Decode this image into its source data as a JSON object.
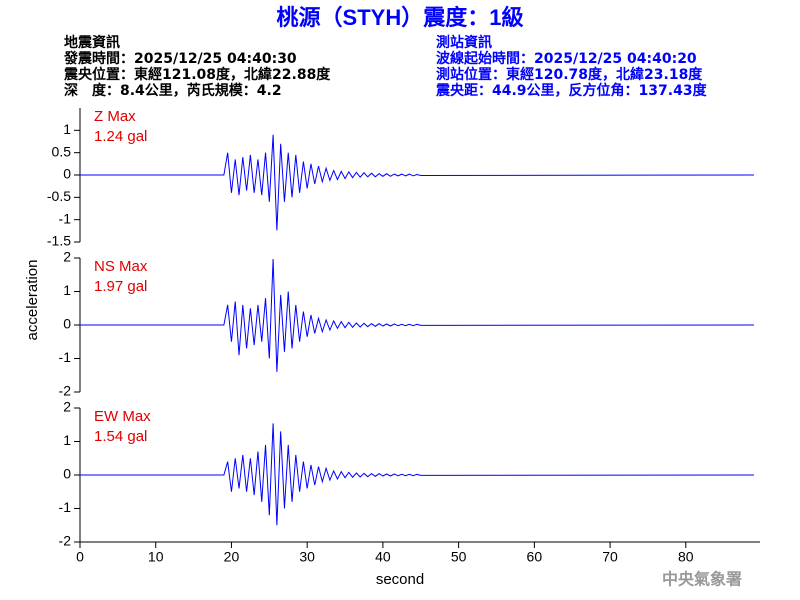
{
  "header": {
    "title": "桃源（STYH）震度：1級",
    "left": [
      "地震資訊",
      "發震時間：2025/12/25 04:40:30",
      "震央位置：東經121.08度，北緯22.88度",
      "深　度：8.4公里，芮氏規模：4.2"
    ],
    "right": [
      "測站資訊",
      "波線起始時間：2025/12/25 04:40:20",
      "測站位置：東經120.78度，北緯23.18度",
      "震央距：44.9公里，反方位角：137.43度"
    ],
    "ylabel": "acceleration",
    "footer": "中央氣象署"
  },
  "chart_data": [
    {
      "type": "line",
      "annotation": [
        "Z Max",
        "1.24 gal"
      ],
      "color": "#0000ff",
      "label_color": "#e00000",
      "xlim": [
        0,
        89.8
      ],
      "ylim": [
        -1.5,
        1.5
      ],
      "yticks": [
        -1.5,
        -1,
        -0.5,
        0,
        0.5,
        1
      ],
      "x": [
        0,
        19,
        19.5,
        20,
        20.5,
        21,
        21.5,
        22,
        22.5,
        23,
        23.5,
        24,
        24.5,
        25,
        25.5,
        26,
        26.5,
        27,
        27.5,
        28,
        28.5,
        29,
        29.5,
        30,
        30.5,
        31,
        31.5,
        32,
        32.5,
        33,
        33.5,
        34,
        34.5,
        35,
        35.5,
        36,
        36.5,
        37,
        37.5,
        38,
        38.5,
        39,
        39.5,
        40,
        40.5,
        41,
        41.5,
        42,
        42.5,
        43,
        43.5,
        44,
        44.5,
        45,
        89
      ],
      "values": [
        0,
        0,
        0.5,
        -0.4,
        0.35,
        -0.45,
        0.4,
        -0.35,
        0.45,
        -0.4,
        0.35,
        -0.45,
        0.5,
        -0.6,
        0.9,
        -1.24,
        0.7,
        -0.6,
        0.5,
        -0.5,
        0.45,
        -0.4,
        0.3,
        -0.3,
        0.25,
        -0.2,
        0.2,
        -0.15,
        0.15,
        -0.12,
        0.1,
        -0.1,
        0.08,
        -0.08,
        0.07,
        -0.06,
        0.06,
        -0.05,
        0.05,
        -0.04,
        0.04,
        -0.04,
        0.03,
        -0.03,
        0.03,
        -0.03,
        0.02,
        -0.02,
        0.02,
        -0.02,
        0.02,
        -0.02,
        0.01,
        -0.01,
        0
      ]
    },
    {
      "type": "line",
      "annotation": [
        "NS Max",
        "1.97 gal"
      ],
      "color": "#0000ff",
      "label_color": "#e00000",
      "xlim": [
        0,
        89.8
      ],
      "ylim": [
        -2,
        2
      ],
      "yticks": [
        -2,
        -1,
        0,
        1,
        2
      ],
      "x": [
        0,
        19,
        19.5,
        20,
        20.5,
        21,
        21.5,
        22,
        22.5,
        23,
        23.5,
        24,
        24.5,
        25,
        25.5,
        26,
        26.5,
        27,
        27.5,
        28,
        28.5,
        29,
        29.5,
        30,
        30.5,
        31,
        31.5,
        32,
        32.5,
        33,
        33.5,
        34,
        34.5,
        35,
        35.5,
        36,
        36.5,
        37,
        37.5,
        38,
        38.5,
        39,
        39.5,
        40,
        40.5,
        41,
        41.5,
        42,
        42.5,
        43,
        43.5,
        44,
        44.5,
        45,
        89
      ],
      "values": [
        0,
        0,
        0.6,
        -0.5,
        0.7,
        -0.9,
        0.6,
        -0.7,
        0.5,
        -0.6,
        0.6,
        -0.5,
        0.8,
        -1.0,
        1.97,
        -1.4,
        0.9,
        -0.8,
        1.0,
        -0.7,
        0.6,
        -0.5,
        0.4,
        -0.35,
        0.3,
        -0.25,
        0.2,
        -0.2,
        0.15,
        -0.15,
        0.12,
        -0.1,
        0.1,
        -0.08,
        0.08,
        -0.07,
        0.06,
        -0.06,
        0.05,
        -0.05,
        0.04,
        -0.04,
        0.04,
        -0.03,
        0.03,
        -0.03,
        0.03,
        -0.02,
        0.02,
        -0.02,
        0.02,
        -0.02,
        0.02,
        -0.01,
        0
      ]
    },
    {
      "type": "line",
      "annotation": [
        "EW Max",
        "1.54 gal"
      ],
      "color": "#0000ff",
      "label_color": "#e00000",
      "xlim": [
        0,
        89.8
      ],
      "ylim": [
        -2,
        2
      ],
      "yticks": [
        -2,
        -1,
        0,
        1,
        2
      ],
      "xticks": [
        0,
        10,
        20,
        30,
        40,
        50,
        60,
        70,
        80
      ],
      "xlabel": "second",
      "x": [
        0,
        19,
        19.5,
        20,
        20.5,
        21,
        21.5,
        22,
        22.5,
        23,
        23.5,
        24,
        24.5,
        25,
        25.5,
        26,
        26.5,
        27,
        27.5,
        28,
        28.5,
        29,
        29.5,
        30,
        30.5,
        31,
        31.5,
        32,
        32.5,
        33,
        33.5,
        34,
        34.5,
        35,
        35.5,
        36,
        36.5,
        37,
        37.5,
        38,
        38.5,
        39,
        39.5,
        40,
        40.5,
        41,
        41.5,
        42,
        42.5,
        43,
        43.5,
        44,
        44.5,
        45,
        89
      ],
      "values": [
        0,
        0,
        0.4,
        -0.5,
        0.5,
        -0.4,
        0.6,
        -0.5,
        0.5,
        -0.6,
        0.7,
        -0.8,
        0.9,
        -1.2,
        1.54,
        -1.5,
        1.3,
        -1.0,
        0.9,
        -0.8,
        0.6,
        -0.5,
        0.4,
        -0.4,
        0.3,
        -0.3,
        0.25,
        -0.2,
        0.2,
        -0.15,
        0.12,
        -0.12,
        0.1,
        -0.08,
        0.08,
        -0.07,
        0.06,
        -0.06,
        0.05,
        -0.05,
        0.04,
        -0.04,
        0.04,
        -0.03,
        0.03,
        -0.03,
        0.03,
        -0.02,
        0.02,
        -0.02,
        0.02,
        -0.02,
        0.02,
        -0.01,
        0
      ]
    }
  ]
}
